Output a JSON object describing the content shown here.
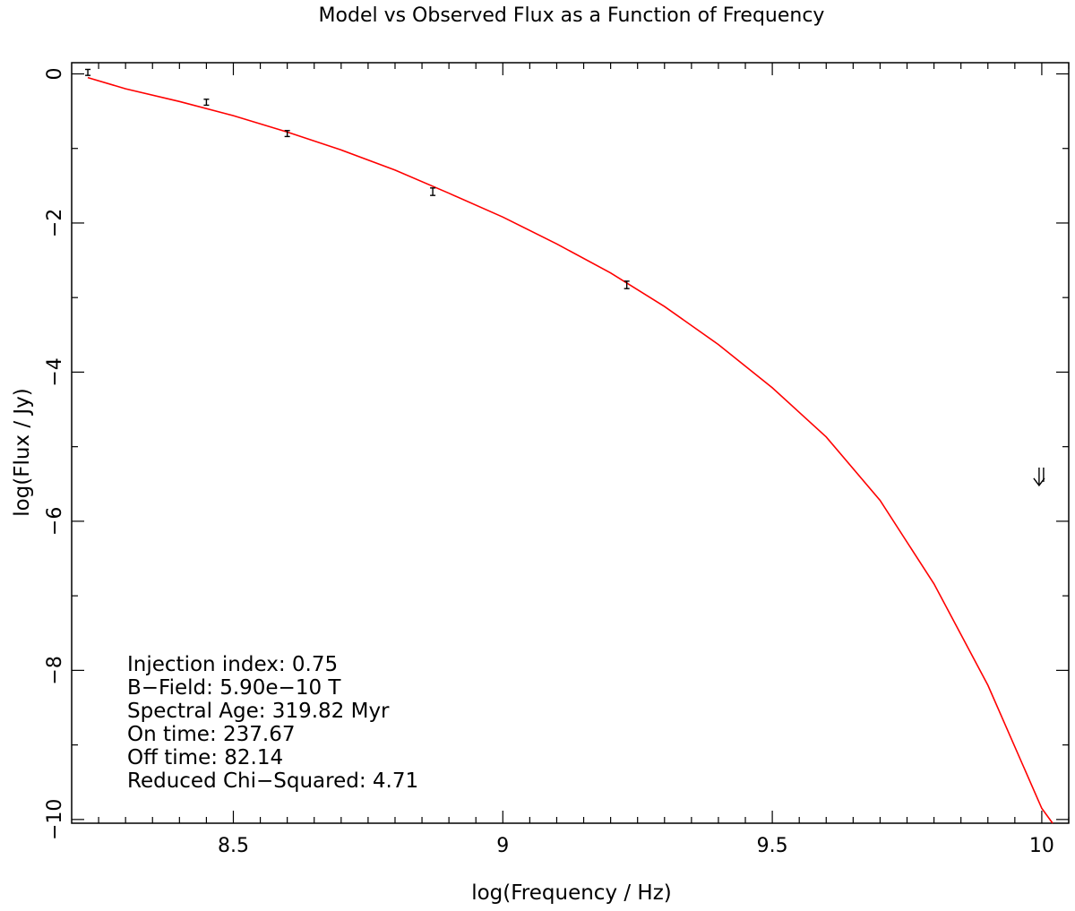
{
  "chart_data": {
    "type": "line",
    "title": "Model vs Observed Flux as a Function of Frequency",
    "xlabel": "log(Frequency / Hz)",
    "ylabel": "log(Flux / Jy)",
    "xlim": [
      8.2,
      10.05
    ],
    "ylim": [
      -10.05,
      0.15
    ],
    "x_ticks": [
      8.5,
      9,
      9.5,
      10
    ],
    "x_tick_labels": [
      "8.5",
      "9",
      "9.5",
      "10"
    ],
    "y_ticks": [
      0,
      -2,
      -4,
      -6,
      -8,
      -10
    ],
    "y_tick_labels": [
      "0",
      "−2",
      "−4",
      "−6",
      "−8",
      "−10"
    ],
    "grid": false,
    "colors": {
      "model": "#ff0000",
      "observed": "#000000"
    },
    "observed": [
      {
        "x": 8.23,
        "y": 0.02,
        "yerr": 0.04
      },
      {
        "x": 8.45,
        "y": -0.38,
        "yerr": 0.04
      },
      {
        "x": 8.6,
        "y": -0.8,
        "yerr": 0.04
      },
      {
        "x": 8.87,
        "y": -1.58,
        "yerr": 0.05
      },
      {
        "x": 9.23,
        "y": -2.83,
        "yerr": 0.05
      }
    ],
    "upper_limits": [
      {
        "x": 10.0,
        "y": -5.4
      }
    ],
    "model": {
      "x": [
        8.23,
        8.3,
        8.4,
        8.5,
        8.6,
        8.7,
        8.8,
        8.9,
        9.0,
        9.1,
        9.2,
        9.3,
        9.4,
        9.5,
        9.6,
        9.7,
        9.8,
        9.9,
        10.0,
        10.02
      ],
      "y": [
        -0.05,
        -0.2,
        -0.37,
        -0.56,
        -0.78,
        -1.02,
        -1.29,
        -1.6,
        -1.92,
        -2.28,
        -2.67,
        -3.12,
        -3.63,
        -4.21,
        -4.87,
        -5.72,
        -6.84,
        -8.2,
        -9.85,
        -10.05
      ]
    },
    "annotations": [
      "Injection index: 0.75",
      "B−Field: 5.90e−10 T",
      "Spectral Age: 319.82 Myr",
      "On time: 237.67",
      "Off time: 82.14",
      "Reduced Chi−Squared: 4.71"
    ]
  }
}
